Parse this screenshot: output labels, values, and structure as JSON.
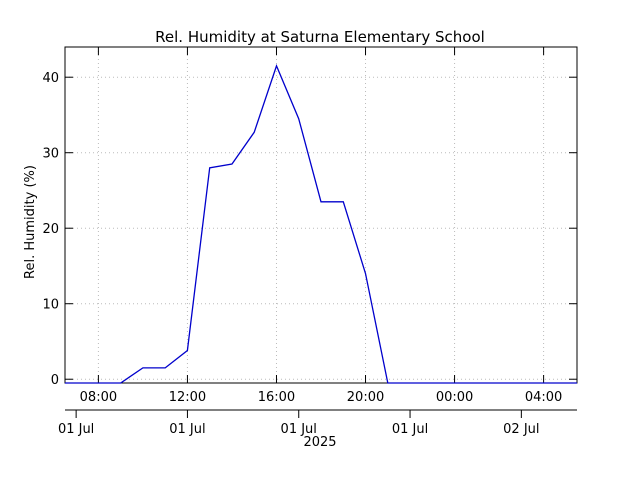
{
  "chart_data": {
    "type": "line",
    "title": "Rel. Humidity at Saturna Elementary School",
    "ylabel": "Rel. Humidity (%)",
    "xlabel": "",
    "ylim": [
      -0.5,
      44
    ],
    "xlim": [
      "2025-07-01T06:30",
      "2025-07-02T05:30"
    ],
    "grid": true,
    "x_tick_labels": [
      "08:00",
      "12:00",
      "16:00",
      "20:00",
      "00:00",
      "04:00"
    ],
    "x_tick_times": [
      "2025-07-01T08:00",
      "2025-07-01T12:00",
      "2025-07-01T16:00",
      "2025-07-01T20:00",
      "2025-07-02T00:00",
      "2025-07-02T04:00"
    ],
    "date_labels": [
      "01 Jul",
      "01 Jul",
      "01 Jul",
      "01 Jul",
      "02 Jul"
    ],
    "date_label_times": [
      "2025-07-01T07:00",
      "2025-07-01T12:00",
      "2025-07-01T17:00",
      "2025-07-01T22:00",
      "2025-07-02T03:00"
    ],
    "year_label": "2025",
    "y_ticks": [
      0,
      10,
      20,
      30,
      40
    ],
    "series": [
      {
        "color": "#0000cc",
        "x": [
          "2025-07-01T06:30",
          "2025-07-01T09:00",
          "2025-07-01T10:00",
          "2025-07-01T11:00",
          "2025-07-01T12:00",
          "2025-07-01T13:00",
          "2025-07-01T14:00",
          "2025-07-01T15:00",
          "2025-07-01T16:00",
          "2025-07-01T17:00",
          "2025-07-01T18:00",
          "2025-07-01T19:00",
          "2025-07-01T20:00",
          "2025-07-01T21:00",
          "2025-07-02T05:30"
        ],
        "y": [
          -0.5,
          -0.5,
          1.5,
          1.5,
          3.8,
          28.0,
          28.5,
          32.7,
          41.5,
          34.5,
          23.5,
          23.5,
          14.0,
          -0.5,
          -0.5
        ]
      }
    ]
  }
}
